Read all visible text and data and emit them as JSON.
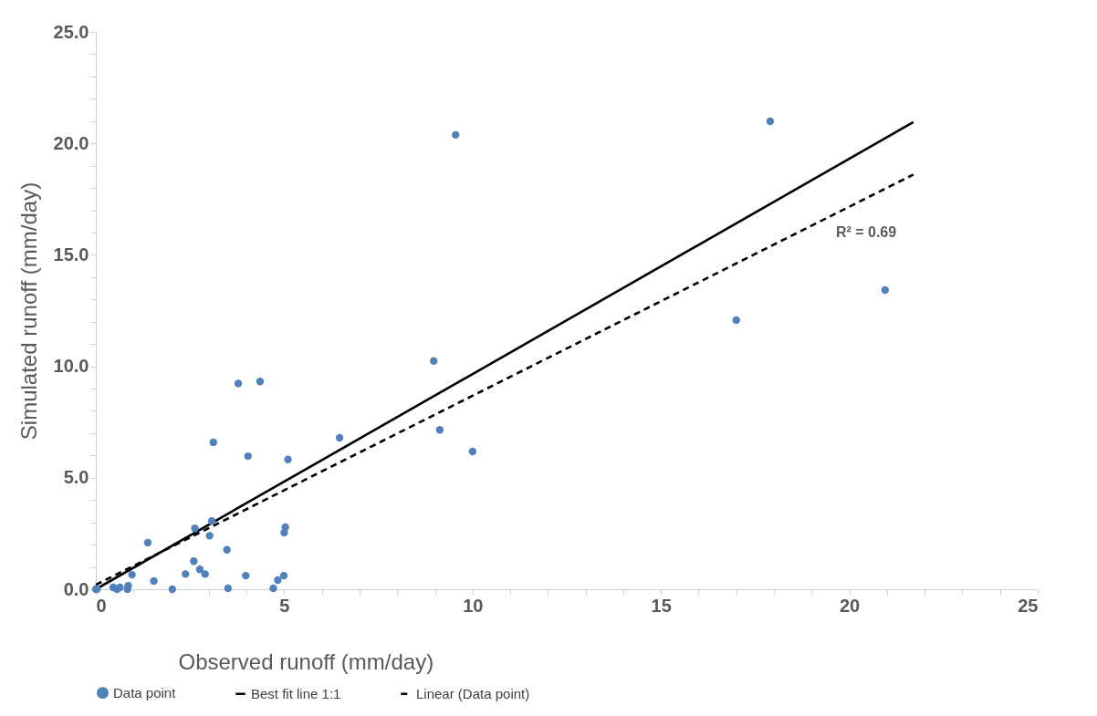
{
  "chart_data": {
    "type": "scatter",
    "xlabel": "Observed runoff (mm/day)",
    "ylabel": "Simulated runoff (mm/day)",
    "xlim": [
      0,
      25
    ],
    "ylim": [
      0,
      25
    ],
    "xticks": [
      0,
      {
        "value": 1,
        "label": null
      },
      {
        "value": 2,
        "label": null
      },
      {
        "value": 3,
        "label": null
      },
      {
        "value": 4,
        "label": null
      },
      5,
      {
        "value": 6,
        "label": null
      },
      {
        "value": 7,
        "label": null
      },
      {
        "value": 8,
        "label": null
      },
      {
        "value": 9,
        "label": null
      },
      10,
      {
        "value": 11,
        "label": null
      },
      {
        "value": 12,
        "label": null
      },
      {
        "value": 13,
        "label": null
      },
      {
        "value": 14,
        "label": null
      },
      15,
      {
        "value": 16,
        "label": null
      },
      {
        "value": 17,
        "label": null
      },
      {
        "value": 18,
        "label": null
      },
      {
        "value": 19,
        "label": null
      },
      20,
      {
        "value": 21,
        "label": null
      },
      {
        "value": 22,
        "label": null
      },
      {
        "value": 23,
        "label": null
      },
      {
        "value": 24,
        "label": null
      },
      25
    ],
    "yticks": [
      {
        "value": 0,
        "label": "0.0"
      },
      {
        "value": 1,
        "label": null
      },
      {
        "value": 2,
        "label": null
      },
      {
        "value": 3,
        "label": null
      },
      {
        "value": 4,
        "label": null
      },
      {
        "value": 5,
        "label": "5.0"
      },
      {
        "value": 6,
        "label": null
      },
      {
        "value": 7,
        "label": null
      },
      {
        "value": 8,
        "label": null
      },
      {
        "value": 9,
        "label": null
      },
      {
        "value": 10,
        "label": "10.0"
      },
      {
        "value": 11,
        "label": null
      },
      {
        "value": 12,
        "label": null
      },
      {
        "value": 13,
        "label": null
      },
      {
        "value": 14,
        "label": null
      },
      {
        "value": 15,
        "label": "15.0"
      },
      {
        "value": 16,
        "label": null
      },
      {
        "value": 17,
        "label": null
      },
      {
        "value": 18,
        "label": null
      },
      {
        "value": 19,
        "label": null
      },
      {
        "value": 20,
        "label": "20.0"
      },
      {
        "value": 21,
        "label": null
      },
      {
        "value": 22,
        "label": null
      },
      {
        "value": 23,
        "label": null
      },
      {
        "value": 24,
        "label": null
      },
      {
        "value": 25,
        "label": "25.0"
      }
    ],
    "grid": false,
    "legend": "bottom",
    "annotations": [
      "R² = 0.69"
    ],
    "series": [
      {
        "name": "Data point",
        "marker": "circle",
        "color": "#4f81bd",
        "x": [
          0,
          0.03,
          0.46,
          0.56,
          0.64,
          0.86,
          0.84,
          0.96,
          1.38,
          1.54,
          2.03,
          2.38,
          2.6,
          2.63,
          2.76,
          2.9,
          3.02,
          3.08,
          3.12,
          3.48,
          3.51,
          3.98,
          4.04,
          4.71,
          4.83,
          4.99,
          5.03,
          5.0,
          5.1,
          6.47,
          3.78,
          4.36,
          8.97,
          9.13,
          10.0,
          9.55,
          17.0,
          17.9,
          20.95
        ],
        "values": [
          0,
          0,
          0.08,
          0,
          0.08,
          0.16,
          0,
          0.65,
          2.09,
          0.37,
          0,
          0.68,
          1.26,
          2.73,
          0.89,
          0.68,
          2.4,
          3.06,
          6.59,
          1.77,
          0.04,
          0.61,
          5.97,
          0.04,
          0.41,
          0.61,
          2.78,
          2.54,
          5.82,
          6.79,
          9.23,
          9.32,
          10.24,
          7.15,
          6.18,
          20.38,
          12.07,
          20.99,
          13.42
        ]
      },
      {
        "name": "Best fit line 1:1",
        "type": "line",
        "marker": "none",
        "line_style": "solid",
        "color": "#000000",
        "x": [
          0,
          21.7
        ],
        "values": [
          0,
          20.95
        ]
      },
      {
        "name": "Linear (Data point)",
        "type": "line",
        "marker": "none",
        "line_style": "dashed",
        "color": "#000000",
        "x": [
          0,
          21.7
        ],
        "values": [
          0.2,
          18.6
        ]
      }
    ]
  }
}
